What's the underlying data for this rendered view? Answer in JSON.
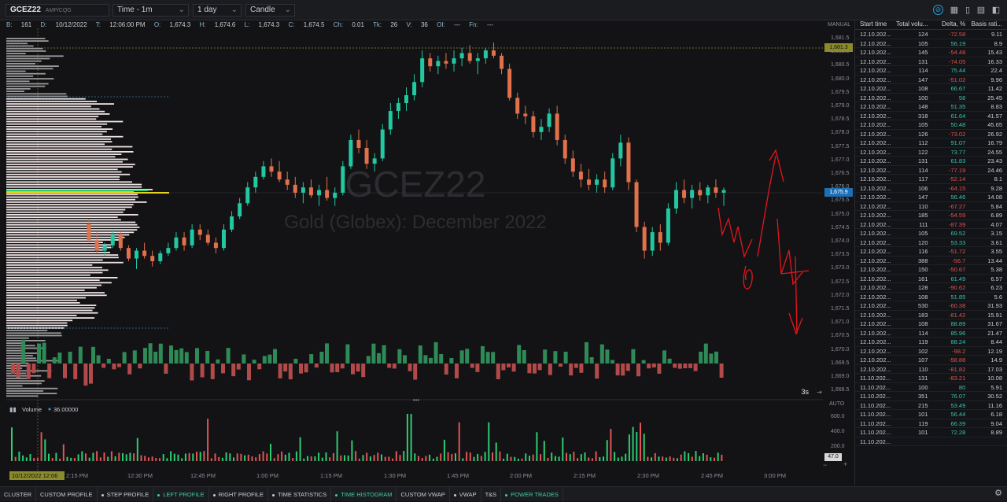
{
  "toolbar": {
    "symbol": "GCEZ22",
    "exchange": "AMP/CQG",
    "interval": "Time - 1m",
    "range": "1 day",
    "chart_type": "Candle"
  },
  "info": {
    "b_label": "B:",
    "b_value": "161",
    "d_label": "D:",
    "d_value": "10/12/2022",
    "t_label": "T:",
    "t_value": "12:06:00 PM",
    "o_label": "O:",
    "o_value": "1,674.3",
    "h_label": "H:",
    "h_value": "1,674.6",
    "l_label": "L:",
    "l_value": "1,674.3",
    "c_label": "C:",
    "c_value": "1,674.5",
    "ch_label": "Ch:",
    "ch_value": "0.01",
    "tk_label": "Tk:",
    "tk_value": "26",
    "v_label": "V:",
    "v_value": "36",
    "oi_label": "OI:",
    "oi_value": "---",
    "fn_label": "Fn:",
    "fn_value": "---"
  },
  "watermark": {
    "symbol": "GCEZ22",
    "name": "Gold (Globex): December 2022"
  },
  "price_axis": {
    "mode": "MANUAL",
    "ticks": [
      "1,681.5",
      "1,681.0",
      "1,680.5",
      "1,680.0",
      "1,679.5",
      "1,679.0",
      "1,678.5",
      "1,678.0",
      "1,677.5",
      "1,677.0",
      "1,676.5",
      "1,676.0",
      "1,675.5",
      "1,675.0",
      "1,674.5",
      "1,674.0",
      "1,673.5",
      "1,673.0",
      "1,672.5",
      "1,672.0",
      "1,671.5",
      "1,671.0",
      "1,670.5",
      "1,670.0",
      "1,669.5",
      "1,669.0",
      "1,668.5"
    ],
    "marker_high": "1,681.3",
    "marker_last": "1,675.9",
    "refresh": "3s"
  },
  "volume_pane": {
    "title": "Volume",
    "value": "36.00000",
    "axis_mode": "AUTO",
    "ticks": [
      "600.0",
      "400.0",
      "200.0"
    ],
    "last": "47.0"
  },
  "time_axis": {
    "cursor_label": "10/12/2022 12:06",
    "ticks": [
      "2:15 PM",
      "12:30 PM",
      "12:45 PM",
      "1:00 PM",
      "1:15 PM",
      "1:30 PM",
      "1:45 PM",
      "2:00 PM",
      "2:15 PM",
      "2:30 PM",
      "2:45 PM",
      "3:00 PM"
    ]
  },
  "table": {
    "headers": [
      "Start time",
      "Total volu...",
      "Delta, %",
      "Basis rati..."
    ],
    "rows": [
      [
        "12.10.202...",
        "124",
        "-72.58",
        "9.11"
      ],
      [
        "12.10.202...",
        "105",
        "56.19",
        "8.9"
      ],
      [
        "12.10.202...",
        "145",
        "-54.48",
        "15.43"
      ],
      [
        "12.10.202...",
        "131",
        "-74.05",
        "16.33"
      ],
      [
        "12.10.202...",
        "114",
        "75.44",
        "22.4"
      ],
      [
        "12.10.202...",
        "147",
        "-51.02",
        "9.96"
      ],
      [
        "12.10.202...",
        "108",
        "66.67",
        "11.42"
      ],
      [
        "12.10.202...",
        "100",
        "58",
        "25.45"
      ],
      [
        "12.10.202...",
        "148",
        "51.35",
        "8.83"
      ],
      [
        "12.10.202...",
        "318",
        "61.64",
        "41.57"
      ],
      [
        "12.10.202...",
        "105",
        "50.48",
        "45.65"
      ],
      [
        "12.10.202...",
        "126",
        "-73.02",
        "26.92"
      ],
      [
        "12.10.202...",
        "112",
        "91.07",
        "16.79"
      ],
      [
        "12.10.202...",
        "122",
        "73.77",
        "24.55"
      ],
      [
        "12.10.202...",
        "131",
        "61.83",
        "23.43"
      ],
      [
        "12.10.202...",
        "114",
        "-77.19",
        "24.46"
      ],
      [
        "12.10.202...",
        "117",
        "-52.14",
        "8.1"
      ],
      [
        "12.10.202...",
        "106",
        "-64.15",
        "9.28"
      ],
      [
        "12.10.202...",
        "147",
        "56.46",
        "14.08"
      ],
      [
        "12.10.202...",
        "110",
        "-67.27",
        "5.84"
      ],
      [
        "12.10.202...",
        "185",
        "-54.59",
        "6.89"
      ],
      [
        "12.10.202...",
        "111",
        "-87.39",
        "4.07"
      ],
      [
        "12.10.202...",
        "105",
        "69.52",
        "3.15"
      ],
      [
        "12.10.202...",
        "120",
        "53.33",
        "3.61"
      ],
      [
        "12.10.202...",
        "116",
        "-51.72",
        "3.55"
      ],
      [
        "12.10.202...",
        "388",
        "-56.7",
        "13.44"
      ],
      [
        "12.10.202...",
        "150",
        "-50.67",
        "5.38"
      ],
      [
        "12.10.202...",
        "161",
        "61.49",
        "6.57"
      ],
      [
        "12.10.202...",
        "128",
        "-90.62",
        "6.23"
      ],
      [
        "12.10.202...",
        "108",
        "51.85",
        "5.6"
      ],
      [
        "12.10.202...",
        "530",
        "-60.38",
        "31.93"
      ],
      [
        "12.10.202...",
        "183",
        "-81.42",
        "15.91"
      ],
      [
        "12.10.202...",
        "108",
        "88.89",
        "31.67"
      ],
      [
        "12.10.202...",
        "114",
        "85.96",
        "21.47"
      ],
      [
        "12.10.202...",
        "119",
        "88.24",
        "8.44"
      ],
      [
        "12.10.202...",
        "102",
        "-98.2",
        "12.19"
      ],
      [
        "12.10.202...",
        "107",
        "-58.88",
        "14.9"
      ],
      [
        "12.10.202...",
        "110",
        "-81.82",
        "17.03"
      ],
      [
        "11.10.202...",
        "131",
        "-83.21",
        "10.08"
      ],
      [
        "11.10.202...",
        "100",
        "80",
        "5.91"
      ],
      [
        "11.10.202...",
        "351",
        "76.07",
        "30.52"
      ],
      [
        "11.10.202...",
        "215",
        "53.49",
        "11.16"
      ],
      [
        "11.10.202...",
        "101",
        "56.44",
        "6.18"
      ],
      [
        "11.10.202...",
        "119",
        "66.39",
        "9.04"
      ],
      [
        "11.10.202...",
        "101",
        "72.28",
        "8.89"
      ],
      [
        "11.10.202...",
        "",
        "",
        " "
      ]
    ]
  },
  "bottom_tabs": [
    {
      "label": "CLUSTER",
      "on": false,
      "dot": false
    },
    {
      "label": "CUSTOM PROFILE",
      "on": false,
      "dot": false
    },
    {
      "label": "STEP PROFILE",
      "on": false,
      "dot": true
    },
    {
      "label": "LEFT PROFILE",
      "on": true,
      "dot": true
    },
    {
      "label": "RIGHT PROFILE",
      "on": false,
      "dot": true
    },
    {
      "label": "TIME STATISTICS",
      "on": false,
      "dot": true
    },
    {
      "label": "TIME HISTOGRAM",
      "on": true,
      "dot": true
    },
    {
      "label": "CUSTOM VWAP",
      "on": false,
      "dot": false
    },
    {
      "label": "VWAP",
      "on": false,
      "dot": true
    },
    {
      "label": "T&S",
      "on": false,
      "dot": false
    },
    {
      "label": "POWER TRADES",
      "on": true,
      "dot": true
    }
  ],
  "colors": {
    "up": "#22c8a0",
    "down": "#e0714a",
    "accent": "#26a0da",
    "annotation": "#e4161a"
  },
  "chart_data": {
    "type": "candlestick",
    "y_range": [
      1668.3,
      1681.8
    ],
    "candles": [
      [
        1674.6,
        1674.8,
        1673.9,
        1674.0
      ],
      [
        1674.0,
        1674.3,
        1673.5,
        1673.6
      ],
      [
        1673.6,
        1673.9,
        1673.4,
        1673.8
      ],
      [
        1673.8,
        1674.4,
        1673.7,
        1674.2
      ],
      [
        1674.2,
        1674.3,
        1673.6,
        1673.7
      ],
      [
        1673.7,
        1673.8,
        1673.2,
        1673.3
      ],
      [
        1673.3,
        1673.7,
        1672.9,
        1673.6
      ],
      [
        1673.6,
        1673.9,
        1673.3,
        1673.4
      ],
      [
        1673.4,
        1673.6,
        1673.0,
        1673.2
      ],
      [
        1673.2,
        1673.6,
        1673.1,
        1673.5
      ],
      [
        1673.5,
        1673.9,
        1673.4,
        1673.7
      ],
      [
        1673.7,
        1674.3,
        1673.6,
        1674.1
      ],
      [
        1674.1,
        1674.3,
        1673.6,
        1673.8
      ],
      [
        1673.8,
        1674.6,
        1673.7,
        1674.4
      ],
      [
        1674.4,
        1674.6,
        1674.0,
        1674.2
      ],
      [
        1674.2,
        1674.4,
        1673.8,
        1673.9
      ],
      [
        1673.9,
        1674.1,
        1673.5,
        1673.7
      ],
      [
        1673.7,
        1674.6,
        1673.6,
        1674.4
      ],
      [
        1674.4,
        1675.1,
        1674.3,
        1674.9
      ],
      [
        1674.9,
        1675.6,
        1674.8,
        1675.4
      ],
      [
        1675.4,
        1676.2,
        1675.3,
        1676.0
      ],
      [
        1676.0,
        1676.6,
        1675.8,
        1676.4
      ],
      [
        1676.4,
        1677.0,
        1676.3,
        1676.8
      ],
      [
        1676.8,
        1677.1,
        1676.4,
        1676.6
      ],
      [
        1676.6,
        1677.0,
        1676.2,
        1676.3
      ],
      [
        1676.3,
        1676.6,
        1675.9,
        1676.1
      ],
      [
        1676.1,
        1676.4,
        1675.6,
        1675.8
      ],
      [
        1675.8,
        1676.2,
        1675.4,
        1676.0
      ],
      [
        1676.0,
        1676.3,
        1675.6,
        1675.7
      ],
      [
        1675.7,
        1676.1,
        1675.3,
        1675.9
      ],
      [
        1675.9,
        1676.4,
        1675.5,
        1675.6
      ],
      [
        1675.6,
        1676.0,
        1675.3,
        1675.8
      ],
      [
        1675.8,
        1677.0,
        1675.7,
        1676.8
      ],
      [
        1676.8,
        1678.0,
        1676.7,
        1677.8
      ],
      [
        1677.8,
        1678.2,
        1677.3,
        1677.5
      ],
      [
        1677.5,
        1677.8,
        1676.7,
        1676.9
      ],
      [
        1676.9,
        1677.3,
        1676.6,
        1677.1
      ],
      [
        1677.1,
        1678.4,
        1677.0,
        1678.2
      ],
      [
        1678.2,
        1679.2,
        1678.0,
        1678.9
      ],
      [
        1678.9,
        1679.4,
        1678.6,
        1679.2
      ],
      [
        1679.2,
        1679.8,
        1678.9,
        1679.5
      ],
      [
        1679.5,
        1680.3,
        1679.3,
        1680.0
      ],
      [
        1680.0,
        1681.2,
        1679.8,
        1680.9
      ],
      [
        1680.9,
        1681.1,
        1680.4,
        1680.6
      ],
      [
        1680.6,
        1681.0,
        1680.3,
        1680.8
      ],
      [
        1680.8,
        1681.1,
        1680.5,
        1680.7
      ],
      [
        1680.7,
        1681.2,
        1680.4,
        1680.9
      ],
      [
        1680.9,
        1681.3,
        1680.6,
        1681.1
      ],
      [
        1681.1,
        1681.4,
        1680.7,
        1680.8
      ],
      [
        1680.8,
        1681.1,
        1680.3,
        1680.9
      ],
      [
        1680.9,
        1681.3,
        1680.7,
        1681.2
      ],
      [
        1681.2,
        1681.5,
        1680.9,
        1681.0
      ],
      [
        1681.0,
        1681.1,
        1680.3,
        1680.5
      ],
      [
        1680.5,
        1680.7,
        1679.3,
        1679.4
      ],
      [
        1679.4,
        1679.6,
        1678.6,
        1678.8
      ],
      [
        1678.8,
        1679.1,
        1678.4,
        1678.7
      ],
      [
        1678.7,
        1678.9,
        1677.9,
        1678.1
      ],
      [
        1678.1,
        1678.6,
        1677.8,
        1678.3
      ],
      [
        1678.3,
        1679.0,
        1678.1,
        1678.8
      ],
      [
        1678.8,
        1679.1,
        1677.6,
        1677.8
      ],
      [
        1677.8,
        1678.0,
        1676.9,
        1677.1
      ],
      [
        1677.1,
        1677.4,
        1676.4,
        1676.6
      ],
      [
        1676.6,
        1676.9,
        1676.0,
        1676.3
      ],
      [
        1676.3,
        1676.7,
        1675.9,
        1676.1
      ],
      [
        1676.1,
        1676.5,
        1675.8,
        1676.3
      ],
      [
        1676.3,
        1676.6,
        1675.8,
        1676.0
      ],
      [
        1676.0,
        1677.3,
        1675.9,
        1677.1
      ],
      [
        1677.1,
        1678.0,
        1676.8,
        1677.7
      ],
      [
        1677.7,
        1677.9,
        1675.9,
        1676.2
      ],
      [
        1676.2,
        1676.3,
        1674.3,
        1674.5
      ],
      [
        1674.5,
        1674.7,
        1673.3,
        1673.6
      ],
      [
        1673.6,
        1674.5,
        1673.4,
        1674.3
      ],
      [
        1674.3,
        1674.6,
        1673.6,
        1673.9
      ],
      [
        1673.9,
        1675.4,
        1673.8,
        1675.2
      ],
      [
        1675.2,
        1676.2,
        1675.0,
        1675.9
      ],
      [
        1675.9,
        1676.3,
        1675.4,
        1675.6
      ],
      [
        1675.6,
        1676.1,
        1675.2,
        1675.9
      ],
      [
        1675.9,
        1676.2,
        1675.5,
        1675.7
      ],
      [
        1675.7,
        1676.1,
        1675.4,
        1676.0
      ],
      [
        1676.0,
        1676.3,
        1675.6,
        1675.8
      ],
      [
        1675.8,
        1676.0,
        1675.3,
        1675.9
      ]
    ]
  }
}
